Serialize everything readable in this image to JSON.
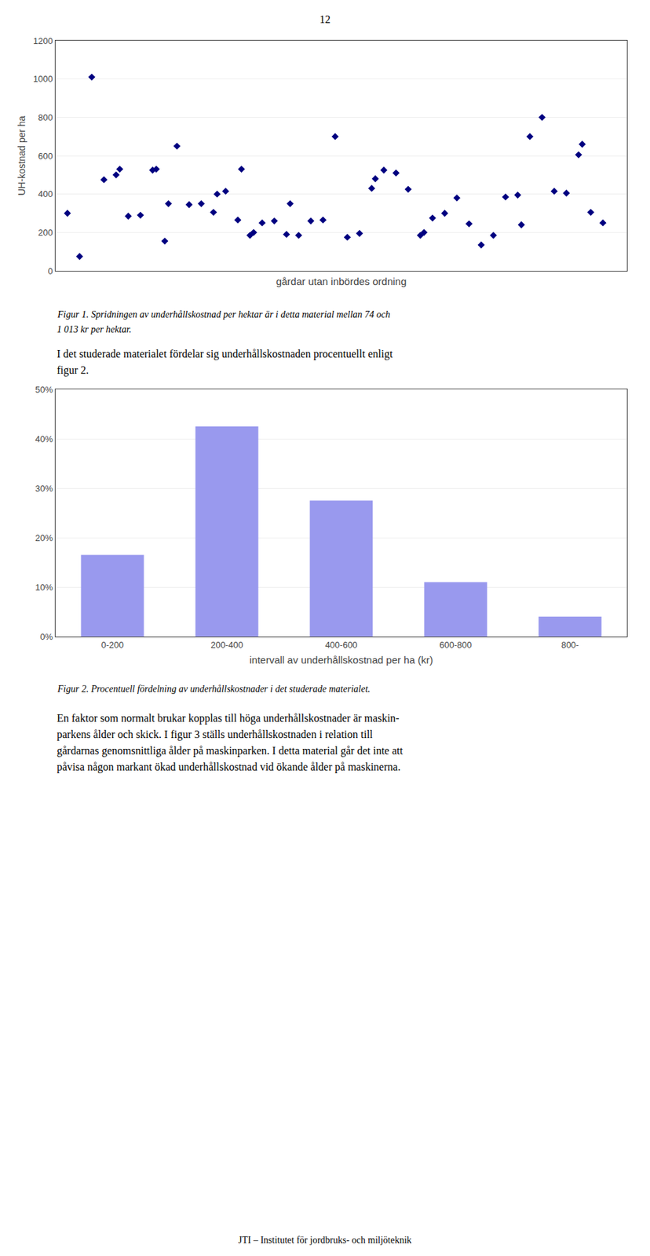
{
  "chart_data": [
    {
      "type": "scatter",
      "x": [
        1,
        2,
        3,
        4,
        5,
        5.3,
        6,
        7,
        8,
        8.3,
        9,
        9.3,
        10,
        11,
        12,
        13,
        13.3,
        14,
        15,
        15.3,
        16,
        16.3,
        17,
        18,
        19,
        19.3,
        20,
        21,
        22,
        23,
        24,
        25,
        26,
        26.3,
        27,
        28,
        29,
        30,
        30.3,
        31,
        32,
        33,
        34,
        35,
        36,
        37,
        38,
        38.3,
        39,
        40,
        41,
        42,
        43,
        43.3,
        44,
        45
      ],
      "values": [
        300,
        75,
        1010,
        475,
        500,
        530,
        285,
        290,
        525,
        530,
        155,
        350,
        650,
        345,
        350,
        305,
        400,
        415,
        265,
        530,
        185,
        200,
        250,
        260,
        190,
        350,
        185,
        260,
        265,
        700,
        175,
        195,
        430,
        480,
        525,
        510,
        425,
        185,
        200,
        275,
        300,
        380,
        245,
        135,
        185,
        385,
        395,
        240,
        700,
        800,
        415,
        405,
        605,
        660,
        305,
        250
      ],
      "xlabel": "gårdar utan inbördes ordning",
      "ylabel": "UH-kostnad per ha",
      "xlim": [
        0,
        47
      ],
      "ylim": [
        0,
        1200
      ],
      "yticks": [
        0,
        200,
        400,
        600,
        800,
        1000,
        1200
      ],
      "grid": true,
      "tick_labels": "y",
      "color": "#000080",
      "marker": "diamond",
      "annotations": [
        "12",
        "Figur 1. Spridningen av underhållskostnad per hektar är i detta material mellan 74 och",
        "1 013 kr per hektar.",
        "I det studerade materialet fördelar sig underhållskostnaden procentuellt enligt",
        "figur 2."
      ]
    },
    {
      "type": "bar",
      "categories": [
        "0-200",
        "200-400",
        "400-600",
        "600-800",
        "800-"
      ],
      "values": [
        0.165,
        0.425,
        0.275,
        0.11,
        0.04
      ],
      "xlabel": "intervall av underhållskostnad per ha (kr)",
      "ylim": [
        0,
        0.5
      ],
      "yticks": [
        {
          "value": 0.0,
          "label": "0%"
        },
        {
          "value": 0.1,
          "label": "10%"
        },
        {
          "value": 0.2,
          "label": "20%"
        },
        {
          "value": 0.3,
          "label": "30%"
        },
        {
          "value": 0.4,
          "label": "40%"
        },
        {
          "value": 0.5,
          "label": "50%"
        }
      ],
      "grid": true,
      "color": "#9999ee",
      "annotations": [
        "Figur 2. Procentuell fördelning av underhållskostnader i det studerade materialet.",
        "En faktor som normalt brukar kopplas till höga underhållskostnader är maskin-",
        "parkens ålder och skick. I figur 3 ställs underhållskostnaden i relation till",
        "gårdarnas genomsnittliga ålder på maskinparken. I detta material går det inte att",
        "påvisa någon markant ökad underhållskostnad vid ökande ålder på maskinerna.",
        "JTI – Institutet för jordbruks- och miljöteknik"
      ]
    }
  ]
}
